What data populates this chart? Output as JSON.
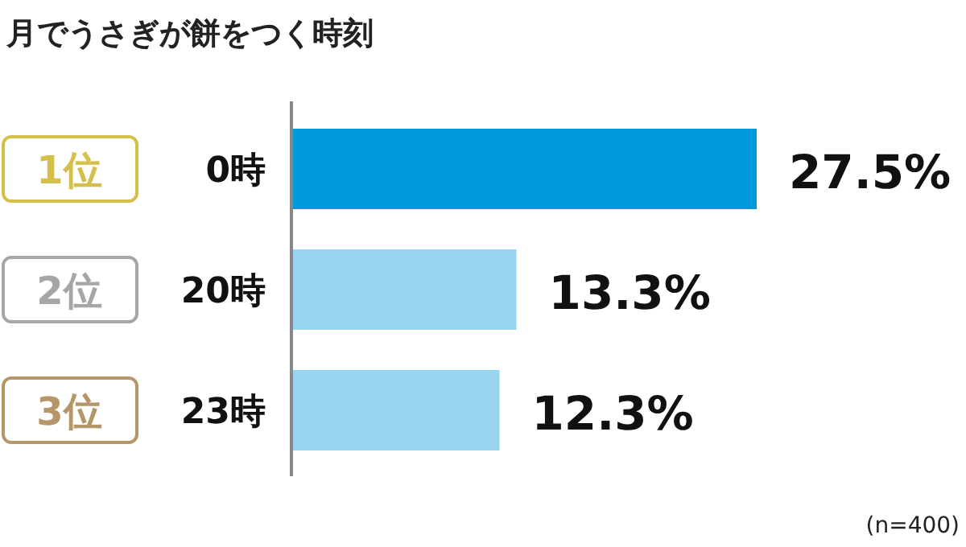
{
  "chart_data": {
    "type": "bar",
    "orientation": "horizontal",
    "title": "月でうさぎが餅をつく時刻",
    "categories": [
      "0時",
      "20時",
      "23時"
    ],
    "values": [
      27.5,
      13.3,
      12.3
    ],
    "colors": [
      "#0099dd",
      "#99d5f0",
      "#99d5f0"
    ],
    "value_labels": [
      "27.5%",
      "13.3%",
      "12.3%"
    ],
    "annotations": [
      "1位",
      "2位",
      "3位",
      "(n=400)"
    ]
  }
}
